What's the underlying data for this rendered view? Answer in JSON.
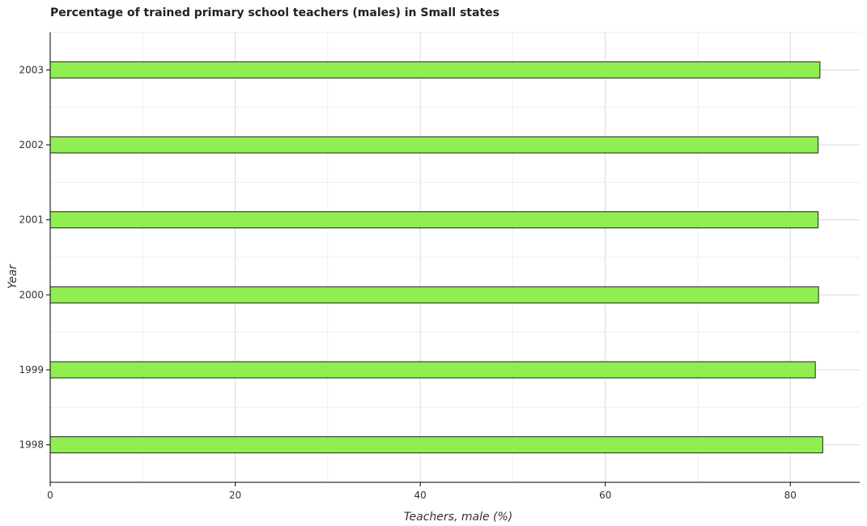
{
  "chart_data": {
    "type": "bar",
    "orientation": "horizontal",
    "title": "Percentage of trained primary school teachers (males) in Small states",
    "xlabel": "Teachers, male (%)",
    "ylabel": "Year",
    "categories": [
      "1998",
      "1999",
      "2000",
      "2001",
      "2002",
      "2003"
    ],
    "values": [
      83.5,
      82.7,
      83.05,
      83.0,
      83.0,
      83.2
    ],
    "x_ticks": [
      "0",
      "20",
      "40",
      "60",
      "80"
    ],
    "xlim": [
      0,
      87.5
    ],
    "grid": true,
    "bar_color": "#90ee50",
    "bar_edge_color": "#222222"
  }
}
